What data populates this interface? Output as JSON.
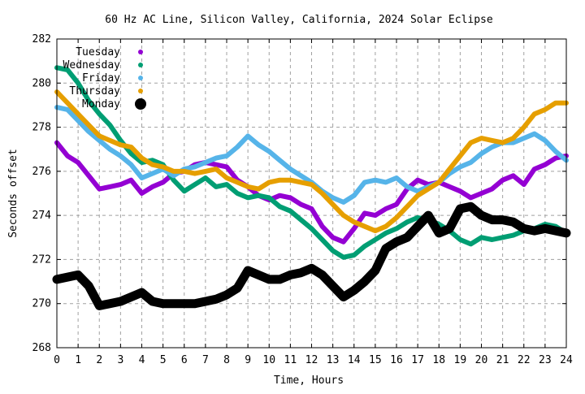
{
  "chart_data": {
    "type": "line",
    "title": "60 Hz AC Line, Silicon Valley, California, 2024 Solar Eclipse",
    "xlabel": "Time, Hours",
    "ylabel": "Seconds offset",
    "xlim": [
      0,
      24
    ],
    "ylim": [
      268,
      282
    ],
    "x_ticks": [
      "0",
      "1",
      "2",
      "3",
      "4",
      "5",
      "6",
      "7",
      "8",
      "9",
      "10",
      "11",
      "12",
      "13",
      "14",
      "15",
      "16",
      "17",
      "18",
      "19",
      "20",
      "21",
      "22",
      "23",
      "24"
    ],
    "y_ticks": [
      "268",
      "270",
      "272",
      "274",
      "276",
      "278",
      "280",
      "282"
    ],
    "grid": true,
    "legend_position": "top-left",
    "x": [
      0,
      0.5,
      1,
      1.5,
      2,
      2.5,
      3,
      3.5,
      4,
      4.5,
      5,
      5.5,
      6,
      6.5,
      7,
      7.5,
      8,
      8.5,
      9,
      9.5,
      10,
      10.5,
      11,
      11.5,
      12,
      12.5,
      13,
      13.5,
      14,
      14.5,
      15,
      15.5,
      16,
      16.5,
      17,
      17.5,
      18,
      18.5,
      19,
      19.5,
      20,
      20.5,
      21,
      21.5,
      22,
      22.5,
      23,
      23.5,
      24
    ],
    "series": [
      {
        "name": "Tuesday",
        "color": "#9400d3",
        "marker": "small-dot",
        "values": [
          277.3,
          276.7,
          276.4,
          275.8,
          275.2,
          275.3,
          275.4,
          275.6,
          275.0,
          275.3,
          275.5,
          275.9,
          276.0,
          276.3,
          276.4,
          276.3,
          276.2,
          275.6,
          275.3,
          274.9,
          274.7,
          274.9,
          274.8,
          274.5,
          274.3,
          273.5,
          273.0,
          272.8,
          273.4,
          274.1,
          274.0,
          274.3,
          274.5,
          275.2,
          275.6,
          275.4,
          275.5,
          275.3,
          275.1,
          274.8,
          275.0,
          275.2,
          275.6,
          275.8,
          275.4,
          276.1,
          276.3,
          276.6,
          276.7
        ]
      },
      {
        "name": "Wednesday",
        "color": "#009e73",
        "marker": "small-dot",
        "values": [
          280.7,
          280.6,
          280.0,
          279.2,
          278.6,
          278.1,
          277.4,
          276.8,
          276.4,
          276.5,
          276.3,
          275.6,
          275.1,
          275.4,
          275.7,
          275.3,
          275.4,
          275.0,
          274.8,
          274.9,
          274.8,
          274.4,
          274.2,
          273.8,
          273.4,
          272.9,
          272.4,
          272.1,
          272.2,
          272.6,
          272.9,
          273.2,
          273.4,
          273.7,
          273.9,
          273.8,
          273.6,
          273.3,
          272.9,
          272.7,
          273.0,
          272.9,
          273.0,
          273.1,
          273.3,
          273.4,
          273.6,
          273.5,
          273.2
        ]
      },
      {
        "name": "Friday",
        "color": "#56b4e9",
        "marker": "small-dot",
        "values": [
          278.9,
          278.8,
          278.3,
          277.8,
          277.4,
          277.0,
          276.7,
          276.3,
          275.7,
          275.9,
          276.1,
          275.8,
          276.1,
          276.2,
          276.4,
          276.6,
          276.7,
          277.1,
          277.6,
          277.2,
          276.9,
          276.5,
          276.1,
          275.8,
          275.5,
          275.1,
          274.8,
          274.6,
          274.9,
          275.5,
          275.6,
          275.5,
          275.7,
          275.3,
          275.1,
          275.3,
          275.5,
          275.9,
          276.2,
          276.4,
          276.8,
          277.1,
          277.3,
          277.3,
          277.5,
          277.7,
          277.4,
          276.9,
          276.5
        ]
      },
      {
        "name": "Thursday",
        "color": "#e69f00",
        "marker": "small-dot",
        "values": [
          279.6,
          279.1,
          278.6,
          278.1,
          277.6,
          277.4,
          277.2,
          277.1,
          276.6,
          276.3,
          276.2,
          276.0,
          276.0,
          275.9,
          276.0,
          276.1,
          275.7,
          275.5,
          275.3,
          275.2,
          275.5,
          275.6,
          275.6,
          275.5,
          275.4,
          275.0,
          274.5,
          274.0,
          273.7,
          273.5,
          273.3,
          273.5,
          273.9,
          274.4,
          274.9,
          275.2,
          275.5,
          276.1,
          276.7,
          277.3,
          277.5,
          277.4,
          277.3,
          277.5,
          278.0,
          278.6,
          278.8,
          279.1,
          279.1
        ]
      },
      {
        "name": "Monday",
        "color": "#000000",
        "marker": "large-dot",
        "values": [
          271.1,
          271.2,
          271.3,
          270.8,
          269.9,
          270.0,
          270.1,
          270.3,
          270.5,
          270.1,
          270.0,
          270.0,
          270.0,
          270.0,
          270.1,
          270.2,
          270.4,
          270.7,
          271.5,
          271.3,
          271.1,
          271.1,
          271.3,
          271.4,
          271.6,
          271.3,
          270.8,
          270.3,
          270.6,
          271.0,
          271.5,
          272.5,
          272.8,
          273.0,
          273.5,
          274.0,
          273.2,
          273.4,
          274.3,
          274.4,
          274.0,
          273.8,
          273.8,
          273.7,
          273.4,
          273.3,
          273.4,
          273.3,
          273.2
        ]
      }
    ]
  }
}
